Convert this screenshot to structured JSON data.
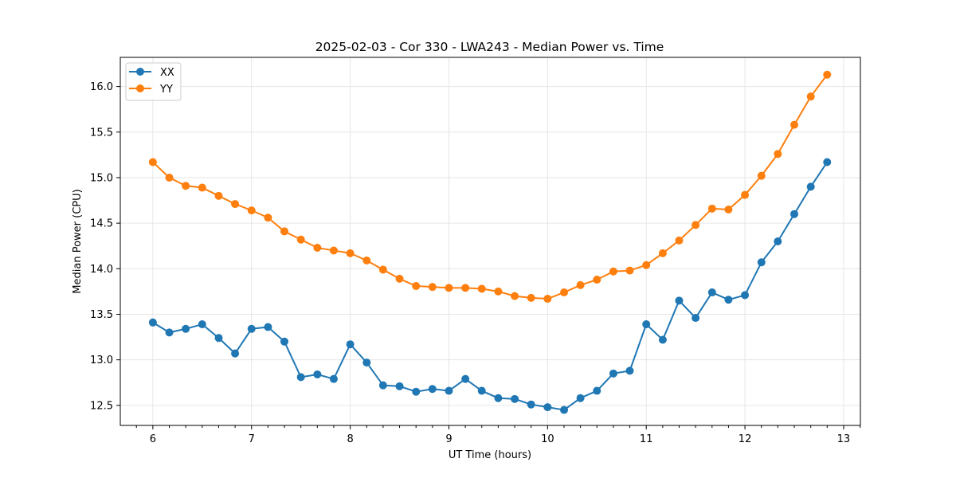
{
  "chart_data": {
    "type": "line",
    "title": "2025-02-03 - Cor 330 - LWA243 - Median Power vs. Time",
    "xlabel": "UT Time (hours)",
    "ylabel": "Median Power (CPU)",
    "xlim": [
      5.67,
      13.17
    ],
    "ylim": [
      12.28,
      16.32
    ],
    "x_ticks": [
      6,
      7,
      8,
      9,
      10,
      11,
      12,
      13
    ],
    "y_ticks": [
      12.5,
      13.0,
      13.5,
      14.0,
      14.5,
      15.0,
      15.5,
      16.0
    ],
    "y_tick_labels": [
      "12.5",
      "13.0",
      "13.5",
      "14.0",
      "14.5",
      "15.0",
      "15.5",
      "16.0"
    ],
    "grid": true,
    "legend_position": "top-left",
    "x": [
      6.0,
      6.167,
      6.333,
      6.5,
      6.667,
      6.833,
      7.0,
      7.167,
      7.333,
      7.5,
      7.667,
      7.833,
      8.0,
      8.167,
      8.333,
      8.5,
      8.667,
      8.833,
      9.0,
      9.167,
      9.333,
      9.5,
      9.667,
      9.833,
      10.0,
      10.167,
      10.333,
      10.5,
      10.667,
      10.833,
      11.0,
      11.167,
      11.333,
      11.5,
      11.667,
      11.833,
      12.0,
      12.167,
      12.333,
      12.5,
      12.667,
      12.833
    ],
    "series": [
      {
        "name": "XX",
        "color": "#1f77b4",
        "values": [
          13.41,
          13.3,
          13.34,
          13.39,
          13.24,
          13.07,
          13.34,
          13.36,
          13.2,
          12.81,
          12.84,
          12.79,
          13.17,
          12.97,
          12.72,
          12.71,
          12.65,
          12.68,
          12.66,
          12.79,
          12.66,
          12.58,
          12.57,
          12.51,
          12.48,
          12.45,
          12.58,
          12.66,
          12.85,
          12.88,
          13.39,
          13.22,
          13.65,
          13.46,
          13.74,
          13.66,
          13.71,
          14.07,
          14.3,
          14.6,
          14.9,
          15.17
        ]
      },
      {
        "name": "YY",
        "color": "#ff7f0e",
        "values": [
          15.17,
          15.0,
          14.91,
          14.89,
          14.8,
          14.71,
          14.64,
          14.56,
          14.41,
          14.32,
          14.23,
          14.2,
          14.17,
          14.09,
          13.99,
          13.89,
          13.81,
          13.8,
          13.79,
          13.79,
          13.78,
          13.75,
          13.7,
          13.68,
          13.67,
          13.74,
          13.82,
          13.88,
          13.97,
          13.98,
          14.04,
          14.17,
          14.31,
          14.48,
          14.66,
          14.65,
          14.81,
          15.02,
          15.26,
          15.58,
          15.89,
          16.13
        ]
      }
    ]
  }
}
